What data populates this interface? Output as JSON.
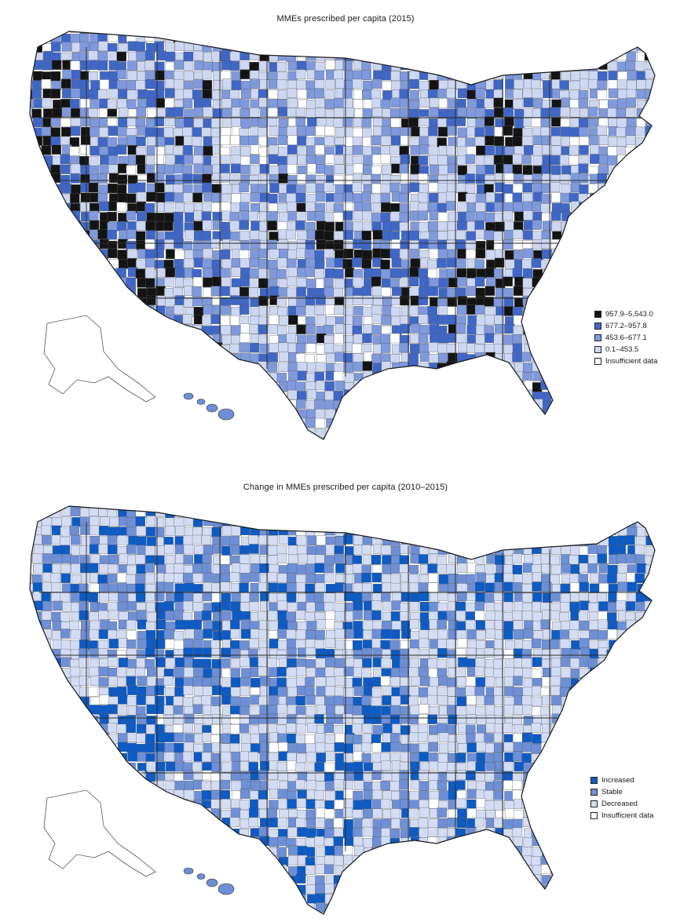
{
  "colors": {
    "class_5": "#141414",
    "class_4": "#3e67c7",
    "class_3": "#7e99dc",
    "class_2": "#cdd7f1",
    "class_1": "#ffffff",
    "increased": "#0d5bc4",
    "stable": "#6d8fd6",
    "decreased": "#d3dcf3",
    "insufficient": "#ffffff",
    "border": "#4a4a4a"
  },
  "maps": [
    {
      "title": "MMEs prescribed per capita (2015)",
      "legend": [
        {
          "label": "957.9–5,543.0",
          "color": "#141414"
        },
        {
          "label": "677.2–957.8",
          "color": "#3e67c7"
        },
        {
          "label": "453.6–677.1",
          "color": "#7e99dc"
        },
        {
          "label": "0.1–453.5",
          "color": "#cdd7f1"
        },
        {
          "label": "Insufficient data",
          "color": "#ffffff"
        }
      ]
    },
    {
      "title": "Change in MMEs prescribed per capita (2010–2015)",
      "legend": [
        {
          "label": "Increased",
          "color": "#0d5bc4"
        },
        {
          "label": "Stable",
          "color": "#6d8fd6"
        },
        {
          "label": "Decreased",
          "color": "#d3dcf3"
        },
        {
          "label": "Insufficient data",
          "color": "#ffffff"
        }
      ]
    }
  ]
}
